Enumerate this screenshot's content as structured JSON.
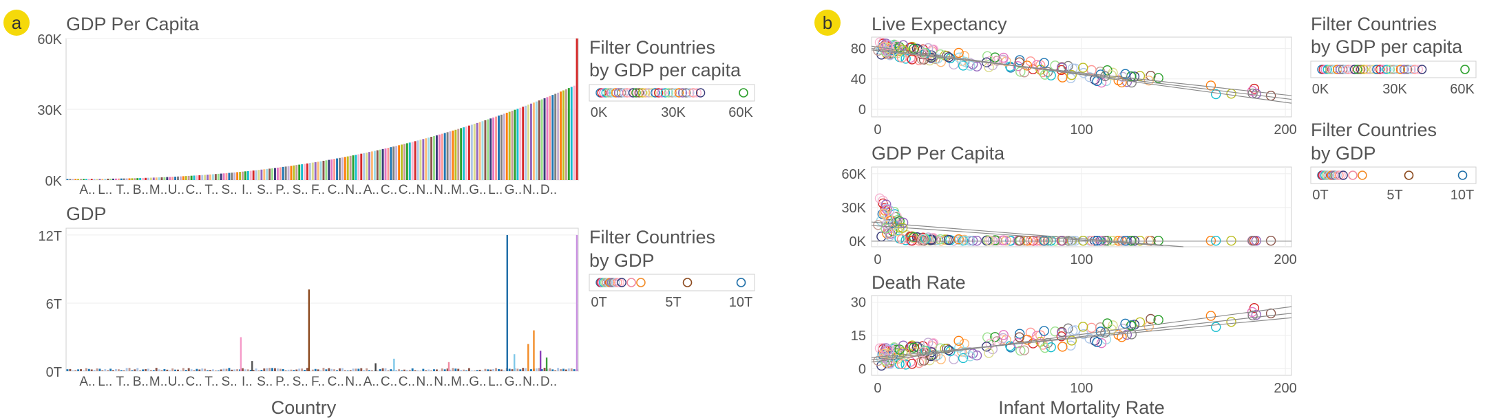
{
  "badges": {
    "a": "a",
    "b": "b",
    "color": "#f5d90a"
  },
  "panel_a": {
    "gdp_per_capita_chart": {
      "type": "bar",
      "title": "GDP Per Capita",
      "yticks": [
        "60K",
        "30K",
        "0K"
      ],
      "ytick_values": [
        60000,
        30000,
        0
      ],
      "ylim": [
        0,
        60000
      ],
      "xtick_labels": [
        "A..",
        "L..",
        "T..",
        "B..",
        "M..",
        "U..",
        "C..",
        "T..",
        "S..",
        "I..",
        "S..",
        "P..",
        "S..",
        "F..",
        "C..",
        "N..",
        "A..",
        "C..",
        "C..",
        "N..",
        "N..",
        "M..",
        "G..",
        "L..",
        "G..",
        "N..",
        "D.."
      ],
      "grid": true
    },
    "gdp_chart": {
      "type": "bar",
      "title": "GDP",
      "yticks": [
        "12T",
        "6T",
        "0T"
      ],
      "ytick_values": [
        12,
        6,
        0
      ],
      "ylim": [
        0,
        12.6
      ],
      "xtick_labels": [
        "A..",
        "L..",
        "T..",
        "B..",
        "M..",
        "U..",
        "C..",
        "T..",
        "S..",
        "I..",
        "S..",
        "P..",
        "S..",
        "F..",
        "C..",
        "N..",
        "A..",
        "C..",
        "C..",
        "N..",
        "N..",
        "M..",
        "G..",
        "L..",
        "G..",
        "N..",
        "D.."
      ],
      "xlabel": "Country",
      "spikes": [
        {
          "pos": 0.341,
          "value": 3.0,
          "color": "#f59ac8"
        },
        {
          "pos": 0.363,
          "value": 0.9,
          "color": "#555555"
        },
        {
          "pos": 0.474,
          "value": 7.2,
          "color": "#8c4a1e"
        },
        {
          "pos": 0.604,
          "value": 0.7,
          "color": "#444444"
        },
        {
          "pos": 0.64,
          "value": 1.1,
          "color": "#7fc7e8"
        },
        {
          "pos": 0.747,
          "value": 0.8,
          "color": "#f08aa0"
        },
        {
          "pos": 0.861,
          "value": 12.0,
          "color": "#1f6fa8"
        },
        {
          "pos": 0.875,
          "value": 1.5,
          "color": "#7fc7e8"
        },
        {
          "pos": 0.902,
          "value": 2.4,
          "color": "#f28c28"
        },
        {
          "pos": 0.913,
          "value": 3.6,
          "color": "#f28c28"
        },
        {
          "pos": 0.926,
          "value": 1.8,
          "color": "#8a3fb8"
        },
        {
          "pos": 0.938,
          "value": 1.2,
          "color": "#3a9c3a"
        },
        {
          "pos": 0.997,
          "value": 12.0,
          "color": "#c88ee0"
        }
      ]
    },
    "filter_gdp_per_capita": {
      "title_line1": "Filter Countries",
      "title_line2": "by GDP per capita",
      "ticks": [
        "0K",
        "30K",
        "60K"
      ],
      "range": [
        0,
        60000
      ]
    },
    "filter_gdp": {
      "title_line1": "Filter Countries",
      "title_line2": "by GDP",
      "ticks": [
        "0T",
        "5T",
        "10T"
      ],
      "range": [
        0,
        12
      ],
      "outliers": [
        {
          "value": 2.6,
          "color": "#f08aa0"
        },
        {
          "value": 3.4,
          "color": "#f28c28"
        },
        {
          "value": 7.3,
          "color": "#8c4a1e"
        },
        {
          "value": 11.8,
          "color": "#1f6fa8"
        }
      ]
    }
  },
  "panel_b": {
    "life_expectancy_chart": {
      "type": "scatter",
      "title": "Live Expectancy",
      "yticks": [
        "80",
        "40",
        "0"
      ],
      "ytick_values": [
        80,
        40,
        0
      ],
      "ylim": [
        -10,
        95
      ],
      "xlim": [
        -3,
        203
      ],
      "xticks": [
        "0",
        "100",
        "200"
      ],
      "trend_lines": [
        [
          [
            -3,
            80
          ],
          [
            203,
            13
          ]
        ],
        [
          [
            -3,
            78
          ],
          [
            203,
            18
          ]
        ],
        [
          [
            -3,
            83
          ],
          [
            203,
            8
          ]
        ]
      ]
    },
    "gdp_per_capita_scatter": {
      "type": "scatter",
      "title": "GDP Per Capita",
      "yticks": [
        "60K",
        "30K",
        "0K"
      ],
      "ytick_values": [
        60000,
        30000,
        0
      ],
      "ylim": [
        -5000,
        66000
      ],
      "xlim": [
        -3,
        203
      ],
      "xticks": [
        "0",
        "100",
        "200"
      ],
      "trend_lines": [
        [
          [
            -3,
            17000
          ],
          [
            150,
            -5000
          ]
        ],
        [
          [
            -3,
            14000
          ],
          [
            140,
            -4000
          ]
        ],
        [
          [
            -3,
            0
          ],
          [
            203,
            0
          ]
        ]
      ]
    },
    "death_rate_chart": {
      "type": "scatter",
      "title": "Death Rate",
      "yticks": [
        "30",
        "15",
        "0"
      ],
      "ytick_values": [
        30,
        15,
        0
      ],
      "ylim": [
        -3,
        33
      ],
      "xlim": [
        -3,
        203
      ],
      "xticks": [
        "0",
        "100",
        "200"
      ],
      "xlabel": "Infant Mortality Rate",
      "trend_lines": [
        [
          [
            -3,
            3
          ],
          [
            203,
            28
          ]
        ],
        [
          [
            -3,
            4
          ],
          [
            203,
            25
          ]
        ],
        [
          [
            -3,
            5
          ],
          [
            203,
            23
          ]
        ]
      ]
    },
    "filter_gdp_per_capita": {
      "title_line1": "Filter Countries",
      "title_line2": "by GDP per capita",
      "ticks": [
        "0K",
        "30K",
        "60K"
      ],
      "range": [
        0,
        60000
      ]
    },
    "filter_gdp": {
      "title_line1": "Filter Countries",
      "title_line2": "by GDP",
      "ticks": [
        "0T",
        "5T",
        "10T"
      ],
      "range": [
        0,
        12
      ],
      "outliers": [
        {
          "value": 2.6,
          "color": "#f08aa0"
        },
        {
          "value": 3.4,
          "color": "#f28c28"
        },
        {
          "value": 7.3,
          "color": "#8c4a1e"
        },
        {
          "value": 11.8,
          "color": "#1f6fa8"
        }
      ]
    }
  },
  "palette": [
    "#1f77b4",
    "#ff7f0e",
    "#2ca02c",
    "#d62728",
    "#9467bd",
    "#8c564b",
    "#e377c2",
    "#7f7f7f",
    "#bcbd22",
    "#17becf",
    "#aec7e8",
    "#ffbb78",
    "#98df8a",
    "#ff9896",
    "#c5b0d5",
    "#c49c94",
    "#f7b6d2",
    "#dbdb8d",
    "#9edae5",
    "#393b79"
  ]
}
